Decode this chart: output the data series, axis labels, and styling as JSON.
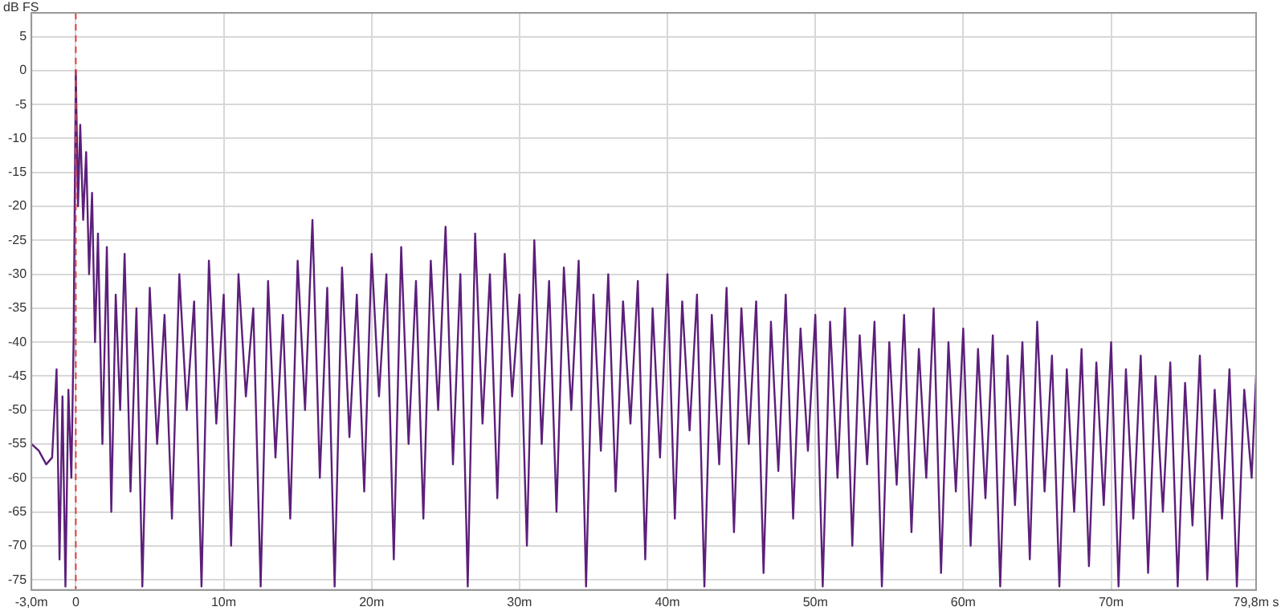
{
  "chart_data": {
    "type": "line",
    "ylabel": "dB FS",
    "xlim": [
      -3,
      79.8
    ],
    "ylim": [
      -76.5,
      8.5
    ],
    "xticks": [
      {
        "value": -3,
        "label": "-3,0m"
      },
      0,
      {
        "value": 10,
        "label": "10m"
      },
      {
        "value": 20,
        "label": "20m"
      },
      {
        "value": 30,
        "label": "30m"
      },
      {
        "value": 40,
        "label": "40m"
      },
      {
        "value": 50,
        "label": "50m"
      },
      {
        "value": 60,
        "label": "60m"
      },
      {
        "value": 70,
        "label": "70m"
      },
      {
        "value": 79.8,
        "label": "79,8m s"
      }
    ],
    "yticks": [
      5,
      0,
      -5,
      -10,
      -15,
      -20,
      -25,
      -30,
      -35,
      -40,
      -45,
      -50,
      -55,
      -60,
      -65,
      -70,
      -75
    ],
    "grid": true,
    "legend": false,
    "marker": "none",
    "line_style": "solid",
    "ref_lines": [
      {
        "axis": "x",
        "value": 0,
        "color": "#e04040",
        "line_style": "dashed"
      }
    ],
    "series": [
      {
        "color": "#5c1f7a",
        "x": [
          -3,
          -2.5,
          -2,
          -1.6,
          -1.3,
          -1.1,
          -0.9,
          -0.7,
          -0.5,
          -0.3,
          -0.15,
          0,
          0.15,
          0.3,
          0.5,
          0.7,
          0.9,
          1.1,
          1.3,
          1.5,
          1.8,
          2.1,
          2.4,
          2.7,
          3,
          3.3,
          3.7,
          4.1,
          4.5,
          5,
          5.5,
          6,
          6.5,
          7,
          7.5,
          8,
          8.5,
          9,
          9.5,
          10,
          10.5,
          11,
          11.5,
          12,
          12.5,
          13,
          13.5,
          14,
          14.5,
          15,
          15.5,
          16,
          16.5,
          17,
          17.5,
          18,
          18.5,
          19,
          19.5,
          20,
          20.5,
          21,
          21.5,
          22,
          22.5,
          23,
          23.5,
          24,
          24.5,
          25,
          25.5,
          26,
          26.5,
          27,
          27.5,
          28,
          28.5,
          29,
          29.5,
          30,
          30.5,
          31,
          31.5,
          32,
          32.5,
          33,
          33.5,
          34,
          34.5,
          35,
          35.5,
          36,
          36.5,
          37,
          37.5,
          38,
          38.5,
          39,
          39.5,
          40,
          40.5,
          41,
          41.5,
          42,
          42.5,
          43,
          43.5,
          44,
          44.5,
          45,
          45.5,
          46,
          46.5,
          47,
          47.5,
          48,
          48.5,
          49,
          49.5,
          50,
          50.5,
          51,
          51.5,
          52,
          52.5,
          53,
          53.5,
          54,
          54.5,
          55,
          55.5,
          56,
          56.5,
          57,
          57.5,
          58,
          58.5,
          59,
          59.5,
          60,
          60.5,
          61,
          61.5,
          62,
          62.5,
          63,
          63.5,
          64,
          64.5,
          65,
          65.5,
          66,
          66.5,
          67,
          67.5,
          68,
          68.5,
          69,
          69.5,
          70,
          70.5,
          71,
          71.5,
          72,
          72.5,
          73,
          73.5,
          74,
          74.5,
          75,
          75.5,
          76,
          76.5,
          77,
          77.5,
          78,
          78.5,
          79,
          79.5,
          79.8
        ],
        "values": [
          -55,
          -56,
          -58,
          -57,
          -44,
          -72,
          -48,
          -76,
          -47,
          -60,
          -40,
          0,
          -20,
          -8,
          -22,
          -12,
          -30,
          -18,
          -40,
          -24,
          -55,
          -26,
          -65,
          -33,
          -50,
          -27,
          -62,
          -35,
          -76,
          -32,
          -55,
          -36,
          -66,
          -30,
          -50,
          -34,
          -76,
          -28,
          -52,
          -33,
          -70,
          -30,
          -48,
          -35,
          -76,
          -31,
          -57,
          -36,
          -66,
          -28,
          -50,
          -22,
          -60,
          -32,
          -76,
          -29,
          -54,
          -33,
          -62,
          -27,
          -48,
          -30,
          -72,
          -26,
          -55,
          -31,
          -66,
          -28,
          -50,
          -23,
          -58,
          -30,
          -76,
          -24,
          -52,
          -30,
          -63,
          -27,
          -48,
          -33,
          -70,
          -25,
          -55,
          -31,
          -65,
          -29,
          -50,
          -28,
          -76,
          -33,
          -56,
          -30,
          -62,
          -34,
          -52,
          -31,
          -72,
          -35,
          -57,
          -30,
          -66,
          -34,
          -53,
          -33,
          -76,
          -36,
          -58,
          -32,
          -68,
          -35,
          -55,
          -34,
          -74,
          -37,
          -59,
          -33,
          -66,
          -38,
          -56,
          -36,
          -76,
          -37,
          -60,
          -35,
          -70,
          -39,
          -58,
          -37,
          -76,
          -40,
          -61,
          -36,
          -68,
          -41,
          -60,
          -35,
          -74,
          -40,
          -62,
          -38,
          -70,
          -41,
          -63,
          -39,
          -76,
          -42,
          -64,
          -40,
          -72,
          -37,
          -62,
          -42,
          -76,
          -44,
          -65,
          -41,
          -73,
          -43,
          -64,
          -40,
          -76,
          -44,
          -66,
          -42,
          -74,
          -45,
          -65,
          -43,
          -76,
          -46,
          -67,
          -42,
          -75,
          -47,
          -66,
          -44,
          -76,
          -47,
          -60,
          -45
        ]
      }
    ]
  }
}
